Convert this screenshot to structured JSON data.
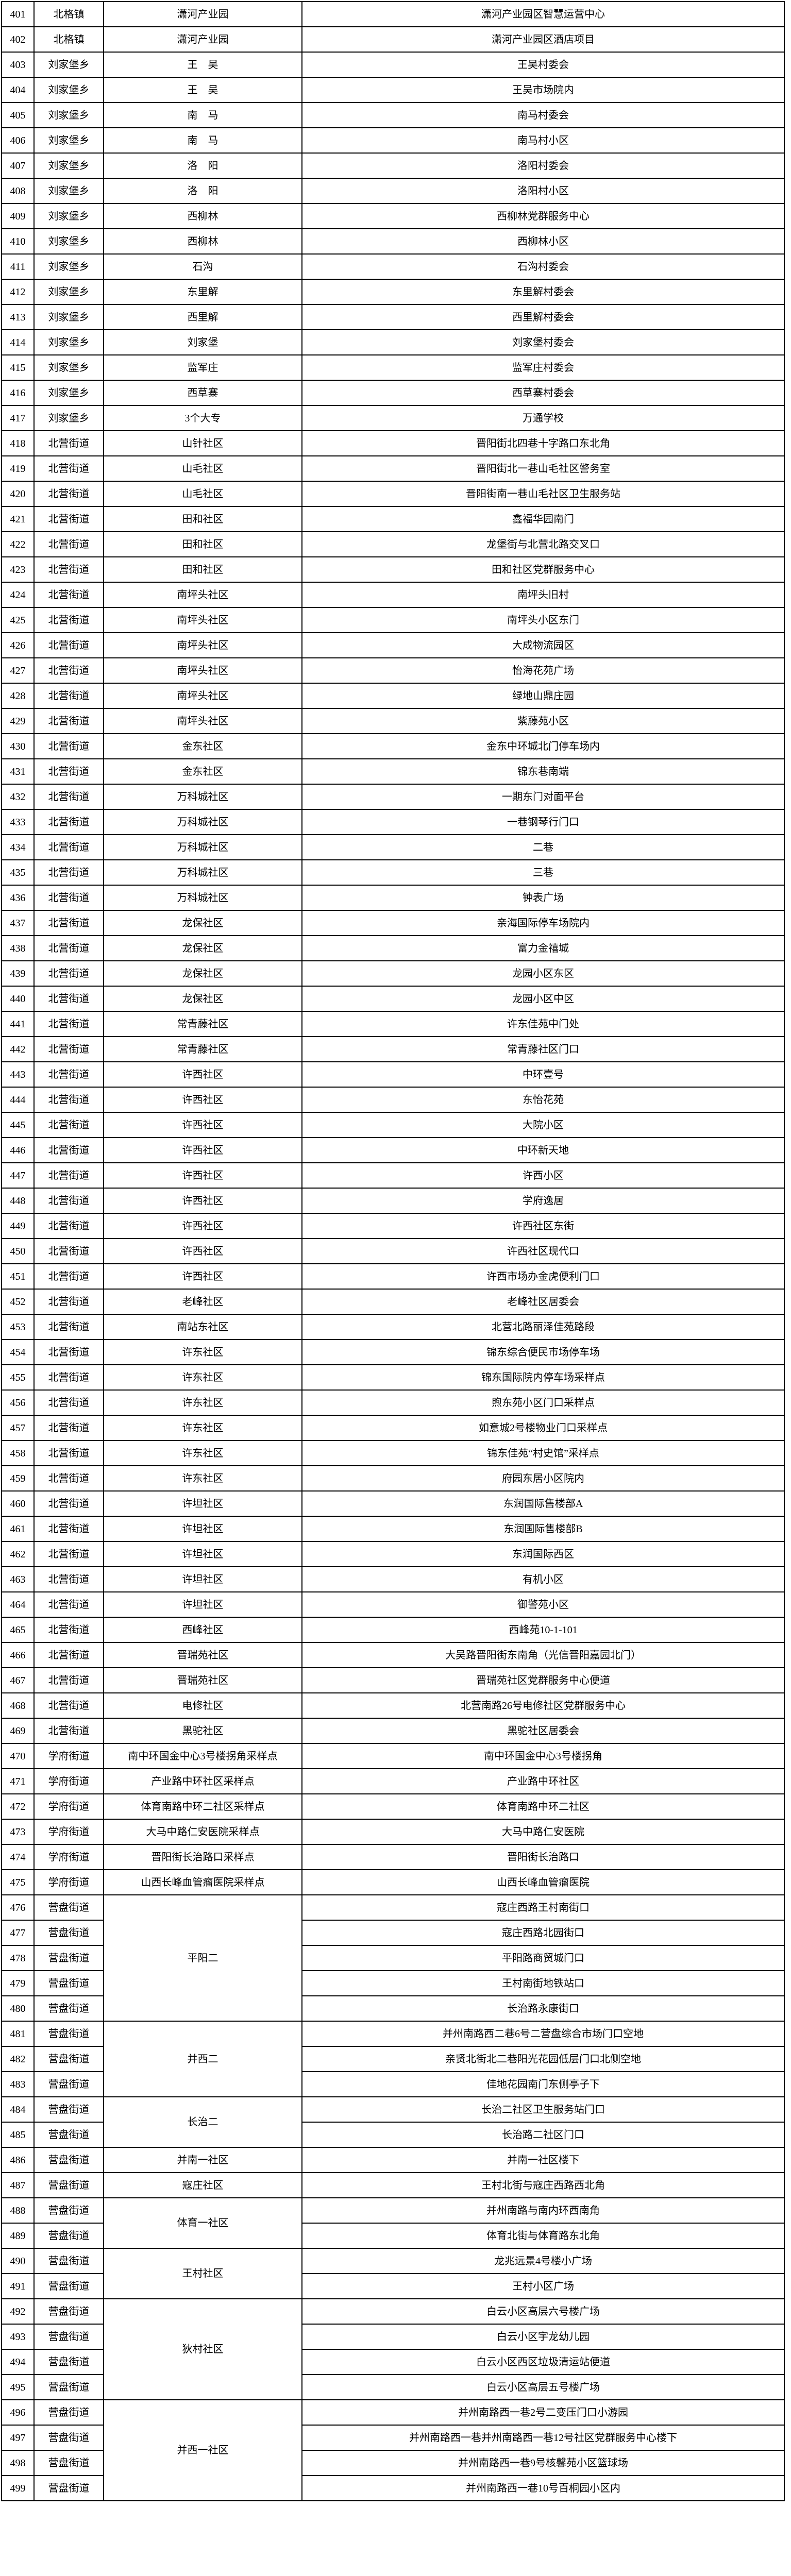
{
  "page": {
    "background": "#ffffff",
    "grid_color": "#000000"
  },
  "table": {
    "rows": [
      {
        "num": "401",
        "town": "北格镇",
        "community": "潇河产业园",
        "rowspan": 1,
        "location": "潇河产业园区智慧运营中心"
      },
      {
        "num": "402",
        "town": "北格镇",
        "community": "潇河产业园",
        "rowspan": 1,
        "location": "潇河产业园区酒店项目"
      },
      {
        "num": "403",
        "town": "刘家堡乡",
        "community": "王　吴",
        "rowspan": 1,
        "location": "王吴村委会"
      },
      {
        "num": "404",
        "town": "刘家堡乡",
        "community": "王　吴",
        "rowspan": 1,
        "location": "王吴市场院内"
      },
      {
        "num": "405",
        "town": "刘家堡乡",
        "community": "南　马",
        "rowspan": 1,
        "location": "南马村委会"
      },
      {
        "num": "406",
        "town": "刘家堡乡",
        "community": "南　马",
        "rowspan": 1,
        "location": "南马村小区"
      },
      {
        "num": "407",
        "town": "刘家堡乡",
        "community": "洛　阳",
        "rowspan": 1,
        "location": "洛阳村委会"
      },
      {
        "num": "408",
        "town": "刘家堡乡",
        "community": "洛　阳",
        "rowspan": 1,
        "location": "洛阳村小区"
      },
      {
        "num": "409",
        "town": "刘家堡乡",
        "community": "西柳林",
        "rowspan": 1,
        "location": "西柳林党群服务中心"
      },
      {
        "num": "410",
        "town": "刘家堡乡",
        "community": "西柳林",
        "rowspan": 1,
        "location": "西柳林小区"
      },
      {
        "num": "411",
        "town": "刘家堡乡",
        "community": "石沟",
        "rowspan": 1,
        "location": "石沟村委会"
      },
      {
        "num": "412",
        "town": "刘家堡乡",
        "community": "东里解",
        "rowspan": 1,
        "location": "东里解村委会"
      },
      {
        "num": "413",
        "town": "刘家堡乡",
        "community": "西里解",
        "rowspan": 1,
        "location": "西里解村委会"
      },
      {
        "num": "414",
        "town": "刘家堡乡",
        "community": "刘家堡",
        "rowspan": 1,
        "location": "刘家堡村委会"
      },
      {
        "num": "415",
        "town": "刘家堡乡",
        "community": "监军庄",
        "rowspan": 1,
        "location": "监军庄村委会"
      },
      {
        "num": "416",
        "town": "刘家堡乡",
        "community": "西草寨",
        "rowspan": 1,
        "location": "西草寨村委会"
      },
      {
        "num": "417",
        "town": "刘家堡乡",
        "community": "3个大专",
        "rowspan": 1,
        "location": "万通学校"
      },
      {
        "num": "418",
        "town": "北营街道",
        "community": "山针社区",
        "rowspan": 1,
        "location": "晋阳街北四巷十字路口东北角"
      },
      {
        "num": "419",
        "town": "北营街道",
        "community": "山毛社区",
        "rowspan": 1,
        "location": "晋阳街北一巷山毛社区警务室"
      },
      {
        "num": "420",
        "town": "北营街道",
        "community": "山毛社区",
        "rowspan": 1,
        "location": "晋阳街南一巷山毛社区卫生服务站"
      },
      {
        "num": "421",
        "town": "北营街道",
        "community": "田和社区",
        "rowspan": 1,
        "location": "鑫福华园南门"
      },
      {
        "num": "422",
        "town": "北营街道",
        "community": "田和社区",
        "rowspan": 1,
        "location": "龙堡街与北营北路交叉口"
      },
      {
        "num": "423",
        "town": "北营街道",
        "community": "田和社区",
        "rowspan": 1,
        "location": "田和社区党群服务中心"
      },
      {
        "num": "424",
        "town": "北营街道",
        "community": "南坪头社区",
        "rowspan": 1,
        "location": "南坪头旧村"
      },
      {
        "num": "425",
        "town": "北营街道",
        "community": "南坪头社区",
        "rowspan": 1,
        "location": "南坪头小区东门"
      },
      {
        "num": "426",
        "town": "北营街道",
        "community": "南坪头社区",
        "rowspan": 1,
        "location": "大成物流园区"
      },
      {
        "num": "427",
        "town": "北营街道",
        "community": "南坪头社区",
        "rowspan": 1,
        "location": "怡海花苑广场"
      },
      {
        "num": "428",
        "town": "北营街道",
        "community": "南坪头社区",
        "rowspan": 1,
        "location": "绿地山鼎庄园"
      },
      {
        "num": "429",
        "town": "北营街道",
        "community": "南坪头社区",
        "rowspan": 1,
        "location": "紫藤苑小区"
      },
      {
        "num": "430",
        "town": "北营街道",
        "community": "金东社区",
        "rowspan": 1,
        "location": "金东中环城北门停车场内"
      },
      {
        "num": "431",
        "town": "北营街道",
        "community": "金东社区",
        "rowspan": 1,
        "location": "锦东巷南端"
      },
      {
        "num": "432",
        "town": "北营街道",
        "community": "万科城社区",
        "rowspan": 1,
        "location": "一期东门对面平台"
      },
      {
        "num": "433",
        "town": "北营街道",
        "community": "万科城社区",
        "rowspan": 1,
        "location": "一巷钢琴行门口"
      },
      {
        "num": "434",
        "town": "北营街道",
        "community": "万科城社区",
        "rowspan": 1,
        "location": "二巷"
      },
      {
        "num": "435",
        "town": "北营街道",
        "community": "万科城社区",
        "rowspan": 1,
        "location": "三巷"
      },
      {
        "num": "436",
        "town": "北营街道",
        "community": "万科城社区",
        "rowspan": 1,
        "location": "钟表广场"
      },
      {
        "num": "437",
        "town": "北营街道",
        "community": "龙保社区",
        "rowspan": 1,
        "location": "亲海国际停车场院内"
      },
      {
        "num": "438",
        "town": "北营街道",
        "community": "龙保社区",
        "rowspan": 1,
        "location": "富力金禧城"
      },
      {
        "num": "439",
        "town": "北营街道",
        "community": "龙保社区",
        "rowspan": 1,
        "location": "龙园小区东区"
      },
      {
        "num": "440",
        "town": "北营街道",
        "community": "龙保社区",
        "rowspan": 1,
        "location": "龙园小区中区"
      },
      {
        "num": "441",
        "town": "北营街道",
        "community": "常青藤社区",
        "rowspan": 1,
        "location": "许东佳苑中门处"
      },
      {
        "num": "442",
        "town": "北营街道",
        "community": "常青藤社区",
        "rowspan": 1,
        "location": "常青藤社区门口"
      },
      {
        "num": "443",
        "town": "北营街道",
        "community": "许西社区",
        "rowspan": 1,
        "location": "中环壹号"
      },
      {
        "num": "444",
        "town": "北营街道",
        "community": "许西社区",
        "rowspan": 1,
        "location": "东怡花苑"
      },
      {
        "num": "445",
        "town": "北营街道",
        "community": "许西社区",
        "rowspan": 1,
        "location": "大院小区"
      },
      {
        "num": "446",
        "town": "北营街道",
        "community": "许西社区",
        "rowspan": 1,
        "location": "中环新天地"
      },
      {
        "num": "447",
        "town": "北营街道",
        "community": "许西社区",
        "rowspan": 1,
        "location": "许西小区"
      },
      {
        "num": "448",
        "town": "北营街道",
        "community": "许西社区",
        "rowspan": 1,
        "location": "学府逸居"
      },
      {
        "num": "449",
        "town": "北营街道",
        "community": "许西社区",
        "rowspan": 1,
        "location": "许西社区东街"
      },
      {
        "num": "450",
        "town": "北营街道",
        "community": "许西社区",
        "rowspan": 1,
        "location": "许西社区现代口"
      },
      {
        "num": "451",
        "town": "北营街道",
        "community": "许西社区",
        "rowspan": 1,
        "location": "许西市场办金虎便利门口"
      },
      {
        "num": "452",
        "town": "北营街道",
        "community": "老峰社区",
        "rowspan": 1,
        "location": "老峰社区居委会"
      },
      {
        "num": "453",
        "town": "北营街道",
        "community": "南站东社区",
        "rowspan": 1,
        "location": "北营北路丽泽佳苑路段"
      },
      {
        "num": "454",
        "town": "北营街道",
        "community": "许东社区",
        "rowspan": 1,
        "location": "锦东综合便民市场停车场"
      },
      {
        "num": "455",
        "town": "北营街道",
        "community": "许东社区",
        "rowspan": 1,
        "location": "锦东国际院内停车场采样点"
      },
      {
        "num": "456",
        "town": "北营街道",
        "community": "许东社区",
        "rowspan": 1,
        "location": "煦东苑小区门口采样点"
      },
      {
        "num": "457",
        "town": "北营街道",
        "community": "许东社区",
        "rowspan": 1,
        "location": "如意城2号楼物业门口采样点"
      },
      {
        "num": "458",
        "town": "北营街道",
        "community": "许东社区",
        "rowspan": 1,
        "location": "锦东佳苑“村史馆”采样点"
      },
      {
        "num": "459",
        "town": "北营街道",
        "community": "许东社区",
        "rowspan": 1,
        "location": "府园东居小区院内"
      },
      {
        "num": "460",
        "town": "北营街道",
        "community": "许坦社区",
        "rowspan": 1,
        "location": "东润国际售楼部A"
      },
      {
        "num": "461",
        "town": "北营街道",
        "community": "许坦社区",
        "rowspan": 1,
        "location": "东润国际售楼部B"
      },
      {
        "num": "462",
        "town": "北营街道",
        "community": "许坦社区",
        "rowspan": 1,
        "location": "东润国际西区"
      },
      {
        "num": "463",
        "town": "北营街道",
        "community": "许坦社区",
        "rowspan": 1,
        "location": "有机小区"
      },
      {
        "num": "464",
        "town": "北营街道",
        "community": "许坦社区",
        "rowspan": 1,
        "location": "御警苑小区"
      },
      {
        "num": "465",
        "town": "北营街道",
        "community": "西峰社区",
        "rowspan": 1,
        "location": "西峰苑10-1-101"
      },
      {
        "num": "466",
        "town": "北营街道",
        "community": "晋瑞苑社区",
        "rowspan": 1,
        "location": "大吴路晋阳街东南角（光信晋阳嘉园北门）"
      },
      {
        "num": "467",
        "town": "北营街道",
        "community": "晋瑞苑社区",
        "rowspan": 1,
        "location": "晋瑞苑社区党群服务中心便道"
      },
      {
        "num": "468",
        "town": "北营街道",
        "community": "电修社区",
        "rowspan": 1,
        "location": "北营南路26号电修社区党群服务中心"
      },
      {
        "num": "469",
        "town": "北营街道",
        "community": "黑驼社区",
        "rowspan": 1,
        "location": "黑驼社区居委会"
      },
      {
        "num": "470",
        "town": "学府街道",
        "community": "南中环国金中心3号楼拐角采样点",
        "rowspan": 1,
        "location": "南中环国金中心3号楼拐角"
      },
      {
        "num": "471",
        "town": "学府街道",
        "community": "产业路中环社区采样点",
        "rowspan": 1,
        "location": "产业路中环社区"
      },
      {
        "num": "472",
        "town": "学府街道",
        "community": "体育南路中环二社区采样点",
        "rowspan": 1,
        "location": "体育南路中环二社区"
      },
      {
        "num": "473",
        "town": "学府街道",
        "community": "大马中路仁安医院采样点",
        "rowspan": 1,
        "location": "大马中路仁安医院"
      },
      {
        "num": "474",
        "town": "学府街道",
        "community": "晋阳街长治路口采样点",
        "rowspan": 1,
        "location": "晋阳街长治路口"
      },
      {
        "num": "475",
        "town": "学府街道",
        "community": "山西长峰血管瘤医院采样点",
        "rowspan": 1,
        "location": "山西长峰血管瘤医院"
      },
      {
        "num": "476",
        "town": "营盘街道",
        "community": "平阳二",
        "rowspan": 5,
        "location": "寇庄西路王村南街口"
      },
      {
        "num": "477",
        "town": "营盘街道",
        "community": null,
        "rowspan": 0,
        "location": "寇庄西路北园街口"
      },
      {
        "num": "478",
        "town": "营盘街道",
        "community": null,
        "rowspan": 0,
        "location": "平阳路商贸城门口"
      },
      {
        "num": "479",
        "town": "营盘街道",
        "community": null,
        "rowspan": 0,
        "location": "王村南街地铁站口"
      },
      {
        "num": "480",
        "town": "营盘街道",
        "community": null,
        "rowspan": 0,
        "location": "长治路永康街口"
      },
      {
        "num": "481",
        "town": "营盘街道",
        "community": "并西二",
        "rowspan": 3,
        "location": "并州南路西二巷6号二营盘综合市场门口空地"
      },
      {
        "num": "482",
        "town": "营盘街道",
        "community": null,
        "rowspan": 0,
        "location": "亲贤北街北二巷阳光花园低层门口北侧空地"
      },
      {
        "num": "483",
        "town": "营盘街道",
        "community": null,
        "rowspan": 0,
        "location": "佳地花园南门东侧亭子下"
      },
      {
        "num": "484",
        "town": "营盘街道",
        "community": "长治二",
        "rowspan": 2,
        "location": "长治二社区卫生服务站门口"
      },
      {
        "num": "485",
        "town": "营盘街道",
        "community": null,
        "rowspan": 0,
        "location": "长治路二社区门口"
      },
      {
        "num": "486",
        "town": "营盘街道",
        "community": "并南一社区",
        "rowspan": 1,
        "location": "并南一社区楼下"
      },
      {
        "num": "487",
        "town": "营盘街道",
        "community": "寇庄社区",
        "rowspan": 1,
        "location": "王村北街与寇庄西路西北角"
      },
      {
        "num": "488",
        "town": "营盘街道",
        "community": "体育一社区",
        "rowspan": 2,
        "location": "并州南路与南内环西南角"
      },
      {
        "num": "489",
        "town": "营盘街道",
        "community": null,
        "rowspan": 0,
        "location": "体育北街与体育路东北角"
      },
      {
        "num": "490",
        "town": "营盘街道",
        "community": "王村社区",
        "rowspan": 2,
        "location": "龙兆远景4号楼小广场"
      },
      {
        "num": "491",
        "town": "营盘街道",
        "community": null,
        "rowspan": 0,
        "location": "王村小区广场"
      },
      {
        "num": "492",
        "town": "营盘街道",
        "community": "狄村社区",
        "rowspan": 4,
        "location": "白云小区高层六号楼广场"
      },
      {
        "num": "493",
        "town": "营盘街道",
        "community": null,
        "rowspan": 0,
        "location": "白云小区宇龙幼儿园"
      },
      {
        "num": "494",
        "town": "营盘街道",
        "community": null,
        "rowspan": 0,
        "location": "白云小区西区垃圾清运站便道"
      },
      {
        "num": "495",
        "town": "营盘街道",
        "community": null,
        "rowspan": 0,
        "location": "白云小区高层五号楼广场"
      },
      {
        "num": "496",
        "town": "营盘街道",
        "community": "并西一社区",
        "rowspan": 4,
        "location": "并州南路西一巷2号二变压门口小游园"
      },
      {
        "num": "497",
        "town": "营盘街道",
        "community": null,
        "rowspan": 0,
        "location": "并州南路西一巷并州南路西一巷12号社区党群服务中心楼下"
      },
      {
        "num": "498",
        "town": "营盘街道",
        "community": null,
        "rowspan": 0,
        "location": "并州南路西一巷9号核馨苑小区篮球场"
      },
      {
        "num": "499",
        "town": "营盘街道",
        "community": null,
        "rowspan": 0,
        "location": "并州南路西一巷10号百桐园小区内"
      }
    ]
  }
}
